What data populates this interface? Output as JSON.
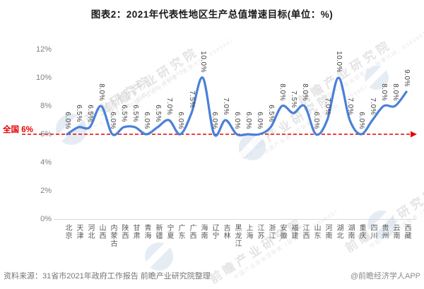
{
  "title": "图表2：2021年代表性地区生产总值增速目标(单位：%)",
  "footer": {
    "source": "资料来源：31省市2021年政府工作报告 前瞻产业研究院整理",
    "brand": "@前瞻经济学人APP"
  },
  "watermark": {
    "brand_large": "前瞻产业研究院",
    "brand_small": "中国产业咨询领导者（股票代码：839599）",
    "logo": "qianzhan-globe-logo"
  },
  "chart_data": {
    "type": "line",
    "title": "图表2：2021年代表性地区生产总值增速目标(单位：%)",
    "unit": "%",
    "grid": false,
    "legend": false,
    "smooth": true,
    "line_color": "#4a80d8",
    "ylim": [
      0,
      12
    ],
    "y_ticks": [
      "0%",
      "2%",
      "4%",
      "6%",
      "8%",
      "10%",
      "12%"
    ],
    "categories": [
      "北京",
      "天津",
      "河北",
      "山西",
      "内蒙古",
      "陕西",
      "甘肃",
      "青海",
      "新疆",
      "宁夏",
      "广东",
      "广西",
      "海南",
      "辽宁",
      "吉林",
      "黑龙江",
      "上海",
      "江苏",
      "浙江",
      "安徽",
      "福建",
      "江西",
      "山东",
      "河南",
      "湖北",
      "湖南",
      "重庆",
      "四川",
      "贵州",
      "云南",
      "西藏"
    ],
    "values": [
      6.0,
      6.5,
      6.5,
      8.0,
      6.0,
      6.5,
      6.5,
      6.0,
      6.5,
      7.0,
      6.0,
      7.5,
      10.0,
      6.0,
      7.0,
      6.0,
      6.0,
      6.0,
      6.5,
      8.0,
      7.5,
      8.0,
      6.0,
      7.0,
      10.0,
      7.0,
      6.0,
      7.0,
      8.0,
      8.0,
      9.0
    ],
    "point_labels": [
      "6.0%",
      "6.5%",
      "6.5%",
      "8.0%",
      "6.0%",
      "6.5%",
      "6.5%",
      "6.0%",
      "6.5%",
      "7.0%",
      "6.0%",
      "7.5%",
      "10.0%",
      "6.0%",
      "7.0%",
      "6.0%",
      "6.0%",
      "6.0%",
      "6.5%",
      "8.0%",
      "7.5%",
      "8.0%",
      "6.0%",
      "7.0%",
      "10.0%",
      "7.0%",
      "6.0%",
      "7.0%",
      "8.0%",
      "8.0%",
      "9.0%"
    ],
    "reference_line": {
      "label": "全国 6%",
      "value": 6,
      "color": "#e60000",
      "style": "dashed-arrow"
    }
  }
}
